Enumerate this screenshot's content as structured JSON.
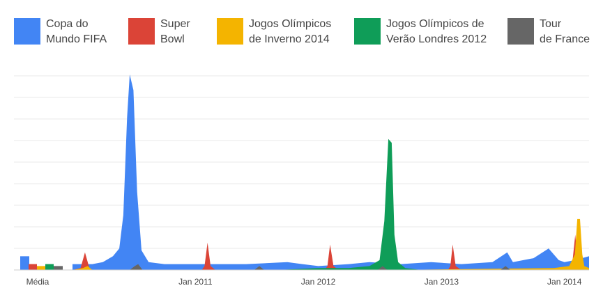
{
  "chart_data": {
    "type": "area",
    "title": "",
    "xlabel": "",
    "ylabel": "",
    "x_range": [
      "2010-01-01",
      "2014-03-15"
    ],
    "ylim": [
      0,
      100
    ],
    "grid": true,
    "legend_position": "top",
    "x_tick_labels": [
      {
        "label": "Jan 2011",
        "date": "2011-01-01"
      },
      {
        "label": "Jan 2012",
        "date": "2012-01-01"
      },
      {
        "label": "Jan 2013",
        "date": "2013-01-01"
      },
      {
        "label": "Jan 2014",
        "date": "2014-01-01"
      }
    ],
    "average_label": "Média",
    "series": [
      {
        "name": "Copa do\nMundo FIFA",
        "color": "#4285f4",
        "average": 7,
        "points": [
          [
            "2010-01-01",
            3
          ],
          [
            "2010-02-01",
            3
          ],
          [
            "2010-03-01",
            3
          ],
          [
            "2010-04-01",
            4
          ],
          [
            "2010-05-01",
            7
          ],
          [
            "2010-05-20",
            11
          ],
          [
            "2010-06-01",
            28
          ],
          [
            "2010-06-12",
            78
          ],
          [
            "2010-06-20",
            100
          ],
          [
            "2010-07-01",
            92
          ],
          [
            "2010-07-12",
            40
          ],
          [
            "2010-07-25",
            10
          ],
          [
            "2010-08-15",
            4
          ],
          [
            "2010-10-01",
            3
          ],
          [
            "2011-01-01",
            3
          ],
          [
            "2011-06-01",
            3
          ],
          [
            "2011-10-01",
            4
          ],
          [
            "2011-11-15",
            3
          ],
          [
            "2012-01-01",
            2
          ],
          [
            "2012-04-01",
            3
          ],
          [
            "2012-06-01",
            4
          ],
          [
            "2012-09-01",
            3
          ],
          [
            "2012-12-01",
            4
          ],
          [
            "2013-03-01",
            3
          ],
          [
            "2013-06-01",
            4
          ],
          [
            "2013-07-15",
            9
          ],
          [
            "2013-08-01",
            4
          ],
          [
            "2013-10-01",
            6
          ],
          [
            "2013-11-15",
            11
          ],
          [
            "2013-12-15",
            5
          ],
          [
            "2014-01-01",
            4
          ],
          [
            "2014-02-01",
            5
          ],
          [
            "2014-03-15",
            7
          ]
        ]
      },
      {
        "name": "Super\nBowl",
        "color": "#db4437",
        "average": 3,
        "points": [
          [
            "2010-01-01",
            0
          ],
          [
            "2010-01-25",
            1
          ],
          [
            "2010-02-07",
            9
          ],
          [
            "2010-02-20",
            1
          ],
          [
            "2010-03-01",
            0
          ],
          [
            "2011-01-20",
            0
          ],
          [
            "2011-01-28",
            2
          ],
          [
            "2011-02-06",
            14
          ],
          [
            "2011-02-15",
            2
          ],
          [
            "2011-03-01",
            0
          ],
          [
            "2012-01-20",
            0
          ],
          [
            "2012-01-28",
            2
          ],
          [
            "2012-02-05",
            13
          ],
          [
            "2012-02-15",
            2
          ],
          [
            "2012-03-01",
            0
          ],
          [
            "2013-01-20",
            0
          ],
          [
            "2013-01-27",
            2
          ],
          [
            "2013-02-03",
            13
          ],
          [
            "2013-02-12",
            2
          ],
          [
            "2013-03-01",
            0
          ],
          [
            "2014-01-15",
            0
          ],
          [
            "2014-01-24",
            3
          ],
          [
            "2014-02-02",
            18
          ],
          [
            "2014-02-10",
            3
          ],
          [
            "2014-03-15",
            0
          ]
        ]
      },
      {
        "name": "Jogos Olímpicos\nde Inverno 2014",
        "color": "#f4b400",
        "average": 2,
        "points": [
          [
            "2010-01-01",
            0
          ],
          [
            "2010-02-01",
            1
          ],
          [
            "2010-02-15",
            2
          ],
          [
            "2010-03-01",
            0
          ],
          [
            "2012-07-20",
            0
          ],
          [
            "2012-08-01",
            1
          ],
          [
            "2012-08-15",
            0
          ],
          [
            "2013-12-01",
            1
          ],
          [
            "2014-01-15",
            2
          ],
          [
            "2014-02-01",
            8
          ],
          [
            "2014-02-08",
            26
          ],
          [
            "2014-02-16",
            26
          ],
          [
            "2014-02-23",
            8
          ],
          [
            "2014-03-01",
            2
          ],
          [
            "2014-03-15",
            1
          ]
        ]
      },
      {
        "name": "Jogos Olímpicos de\nVerão Londres 2012",
        "color": "#0f9d58",
        "average": 3,
        "points": [
          [
            "2010-01-01",
            0
          ],
          [
            "2011-09-01",
            0
          ],
          [
            "2012-01-01",
            1
          ],
          [
            "2012-04-01",
            1
          ],
          [
            "2012-06-01",
            2
          ],
          [
            "2012-07-01",
            5
          ],
          [
            "2012-07-15",
            25
          ],
          [
            "2012-07-27",
            67
          ],
          [
            "2012-08-06",
            65
          ],
          [
            "2012-08-14",
            18
          ],
          [
            "2012-08-25",
            4
          ],
          [
            "2012-09-15",
            1
          ],
          [
            "2012-11-01",
            0
          ],
          [
            "2014-03-15",
            0
          ]
        ]
      },
      {
        "name": "Tour\nde France",
        "color": "#666666",
        "average": 2,
        "points": [
          [
            "2010-01-01",
            0
          ],
          [
            "2010-06-20",
            0
          ],
          [
            "2010-07-05",
            2
          ],
          [
            "2010-07-15",
            3
          ],
          [
            "2010-07-28",
            0
          ],
          [
            "2011-06-25",
            0
          ],
          [
            "2011-07-10",
            2
          ],
          [
            "2011-07-24",
            0
          ],
          [
            "2012-06-25",
            0
          ],
          [
            "2012-07-10",
            2
          ],
          [
            "2012-07-24",
            0
          ],
          [
            "2013-06-25",
            0
          ],
          [
            "2013-07-10",
            2
          ],
          [
            "2013-07-24",
            0
          ],
          [
            "2014-03-15",
            0
          ]
        ]
      }
    ]
  }
}
